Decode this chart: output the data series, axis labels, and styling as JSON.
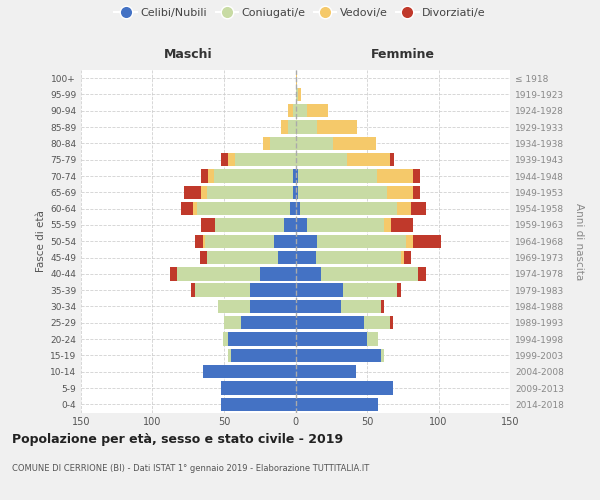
{
  "age_groups": [
    "0-4",
    "5-9",
    "10-14",
    "15-19",
    "20-24",
    "25-29",
    "30-34",
    "35-39",
    "40-44",
    "45-49",
    "50-54",
    "55-59",
    "60-64",
    "65-69",
    "70-74",
    "75-79",
    "80-84",
    "85-89",
    "90-94",
    "95-99",
    "100+"
  ],
  "birth_years": [
    "2014-2018",
    "2009-2013",
    "2004-2008",
    "1999-2003",
    "1994-1998",
    "1989-1993",
    "1984-1988",
    "1979-1983",
    "1974-1978",
    "1969-1973",
    "1964-1968",
    "1959-1963",
    "1954-1958",
    "1949-1953",
    "1944-1948",
    "1939-1943",
    "1934-1938",
    "1929-1933",
    "1924-1928",
    "1919-1923",
    "≤ 1918"
  ],
  "colors": {
    "celibi": "#4472c4",
    "coniugati": "#c8dba4",
    "vedovi": "#f5c96a",
    "divorziati": "#c0392b"
  },
  "maschi": {
    "celibi": [
      52,
      52,
      65,
      45,
      47,
      38,
      32,
      32,
      25,
      12,
      15,
      8,
      4,
      2,
      2,
      0,
      0,
      0,
      0,
      0,
      0
    ],
    "coniugati": [
      0,
      0,
      0,
      2,
      4,
      12,
      22,
      38,
      58,
      50,
      48,
      48,
      65,
      60,
      55,
      42,
      18,
      5,
      2,
      0,
      0
    ],
    "vedovi": [
      0,
      0,
      0,
      0,
      0,
      0,
      0,
      0,
      0,
      0,
      2,
      0,
      3,
      4,
      4,
      5,
      5,
      5,
      3,
      0,
      0
    ],
    "divorziati": [
      0,
      0,
      0,
      0,
      0,
      0,
      0,
      3,
      5,
      5,
      5,
      10,
      8,
      12,
      5,
      5,
      0,
      0,
      0,
      0,
      0
    ]
  },
  "femmine": {
    "celibi": [
      58,
      68,
      42,
      60,
      50,
      48,
      32,
      33,
      18,
      14,
      15,
      8,
      3,
      2,
      2,
      0,
      0,
      0,
      0,
      0,
      0
    ],
    "coniugati": [
      0,
      0,
      0,
      2,
      8,
      18,
      28,
      38,
      68,
      60,
      62,
      54,
      68,
      62,
      55,
      36,
      26,
      15,
      8,
      2,
      0
    ],
    "vedovi": [
      0,
      0,
      0,
      0,
      0,
      0,
      0,
      0,
      0,
      2,
      5,
      5,
      10,
      18,
      25,
      30,
      30,
      28,
      15,
      2,
      1
    ],
    "divorziati": [
      0,
      0,
      0,
      0,
      0,
      2,
      2,
      3,
      5,
      5,
      20,
      15,
      10,
      5,
      5,
      3,
      0,
      0,
      0,
      0,
      0
    ]
  },
  "xlim": 150,
  "title": "Popolazione per età, sesso e stato civile - 2019",
  "subtitle": "COMUNE DI CERRIONE (BI) - Dati ISTAT 1° gennaio 2019 - Elaborazione TUTTITALIA.IT",
  "xlabel_left": "Maschi",
  "xlabel_right": "Femmine",
  "ylabel_left": "Fasce di età",
  "ylabel_right": "Anni di nascita",
  "legend_labels": [
    "Celibi/Nubili",
    "Coniugati/e",
    "Vedovi/e",
    "Divorziati/e"
  ],
  "bg_color": "#f0f0f0",
  "plot_bg": "#ffffff",
  "grid_color": "#cccccc",
  "bar_height": 0.82
}
